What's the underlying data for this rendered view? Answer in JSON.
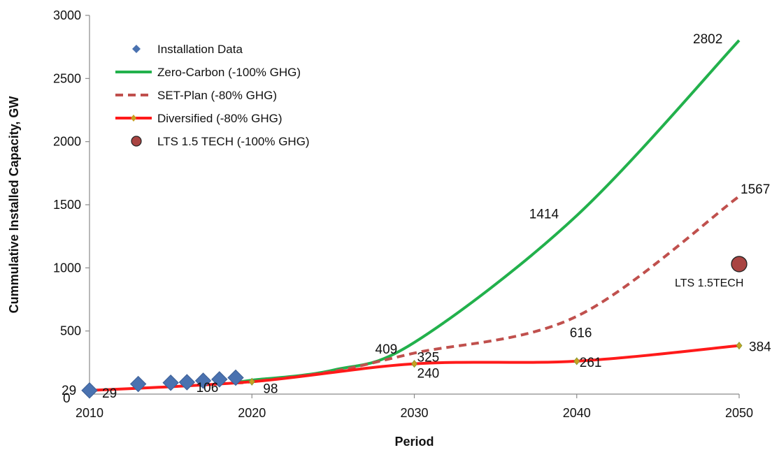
{
  "chart_data": {
    "type": "line",
    "title": "",
    "xlabel": "Period",
    "ylabel": "Cummulative Installed Capacity, GW",
    "xlim": [
      2010,
      2050
    ],
    "ylim": [
      0,
      3000
    ],
    "xticks": [
      "2010",
      "2020",
      "2030",
      "2040",
      "2050"
    ],
    "yticks": [
      "",
      "500",
      "1000",
      "1500",
      "2000",
      "2500",
      "3000"
    ],
    "legend_position": "top-left",
    "grid": false,
    "series": [
      {
        "name": "Installation Data",
        "style": "markers-diamond",
        "color": "#4a72b0",
        "x": [
          2010,
          2013,
          2015,
          2016,
          2017,
          2018,
          2019
        ],
        "y": [
          29,
          80,
          90,
          94,
          106,
          117,
          130
        ]
      },
      {
        "name": "Zero-Carbon (-100% GHG)",
        "style": "solid-line",
        "color": "#22b14c",
        "x": [
          2019,
          2020,
          2025,
          2030,
          2040,
          2050
        ],
        "y": [
          90,
          110,
          190,
          409,
          1414,
          2802
        ]
      },
      {
        "name": "SET-Plan (-80% GHG)",
        "style": "dashed-line",
        "color": "#c0504d",
        "x": [
          2019,
          2020,
          2025,
          2030,
          2040,
          2050
        ],
        "y": [
          90,
          98,
          180,
          325,
          616,
          1567
        ]
      },
      {
        "name": "Diversified (-80% GHG)",
        "style": "solid-line-with-markers",
        "color": "#ff1a1a",
        "marker_color": "#c8a020",
        "x": [
          2010,
          2020,
          2030,
          2040,
          2050
        ],
        "y": [
          29,
          98,
          240,
          261,
          384
        ]
      },
      {
        "name": "LTS 1.5 TECH (-100% GHG)",
        "style": "circle-marker",
        "color": "#a94442",
        "x": [
          2050
        ],
        "y": [
          1030
        ]
      }
    ],
    "annotations": [
      {
        "text": "2802",
        "x": 2050,
        "y": 2802
      },
      {
        "text": "1414",
        "x": 2040,
        "y": 1414
      },
      {
        "text": "1567",
        "x": 2050,
        "y": 1567
      },
      {
        "text": "616",
        "x": 2040,
        "y": 616
      },
      {
        "text": "409",
        "x": 2030,
        "y": 409
      },
      {
        "text": "325",
        "x": 2030,
        "y": 325
      },
      {
        "text": "240",
        "x": 2030,
        "y": 240
      },
      {
        "text": "261",
        "x": 2040,
        "y": 261
      },
      {
        "text": "384",
        "x": 2050,
        "y": 384
      },
      {
        "text": "106",
        "x": 2017,
        "y": 106
      },
      {
        "text": "98",
        "x": 2020,
        "y": 98
      },
      {
        "text": "29",
        "x": 2010,
        "y": 29
      },
      {
        "text": "29",
        "x": 2010,
        "y": 29
      },
      {
        "text": "0",
        "x": 2010,
        "y": 0
      },
      {
        "text": "LTS 1.5TECH",
        "x": 2050,
        "y": 1030
      }
    ]
  }
}
